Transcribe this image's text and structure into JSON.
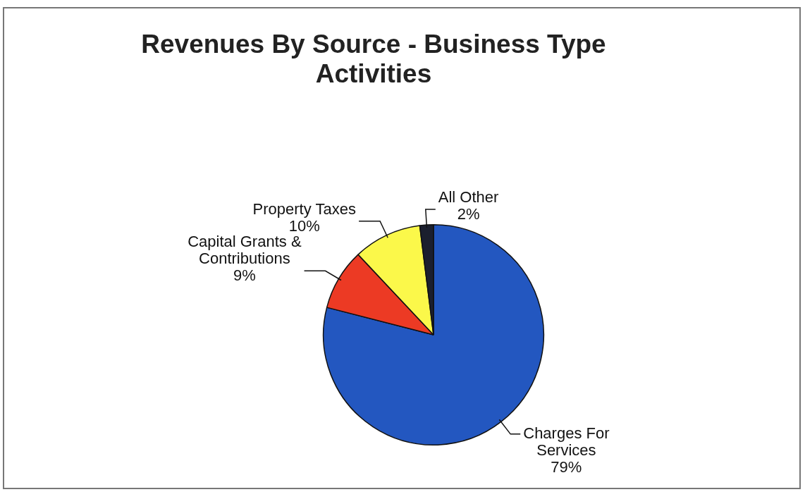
{
  "chart_data": {
    "type": "pie",
    "title": "Revenues By Source  - Business Type Activities",
    "categories": [
      "Charges For Services",
      "Capital Grants & Contributions",
      "Property Taxes",
      "All Other"
    ],
    "values": [
      79,
      9,
      10,
      2
    ],
    "colors": [
      "#2357c0",
      "#ec3a24",
      "#fbf84a",
      "#1b1f2e"
    ],
    "value_labels": [
      "79%",
      "9%",
      "10%",
      "2%"
    ],
    "legend": false
  }
}
